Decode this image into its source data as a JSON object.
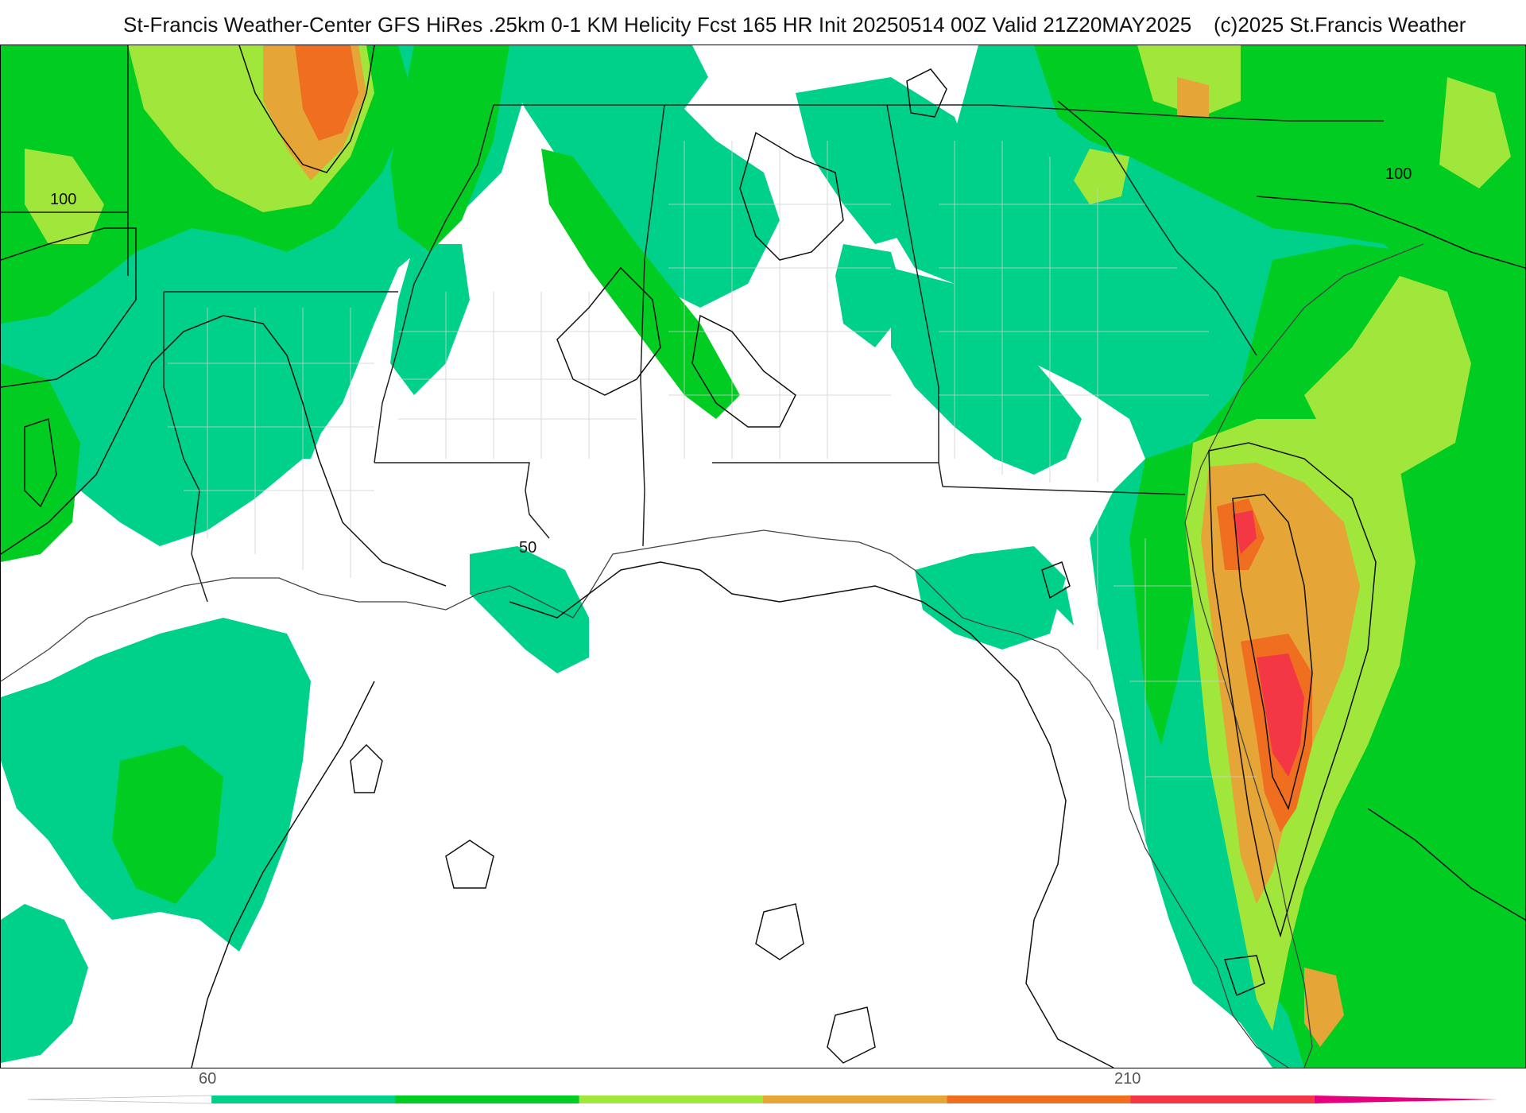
{
  "header": {
    "title": "St-Francis Weather-Center GFS HiRes .25km 0-1 KM Helicity Fcst 165 HR Init 20250514 00Z  Valid 21Z20MAY2025",
    "copyright": "(c)2025 St.Francis Weather"
  },
  "map": {
    "contour_labels": [
      "100",
      "50",
      "100"
    ]
  },
  "legend": {
    "tick_labels": [
      "60",
      "210"
    ],
    "colors": [
      "#ffffff",
      "#00d18a",
      "#00cc22",
      "#a1e63a",
      "#e5a537",
      "#f06e20",
      "#f43744",
      "#e6007e"
    ]
  }
}
